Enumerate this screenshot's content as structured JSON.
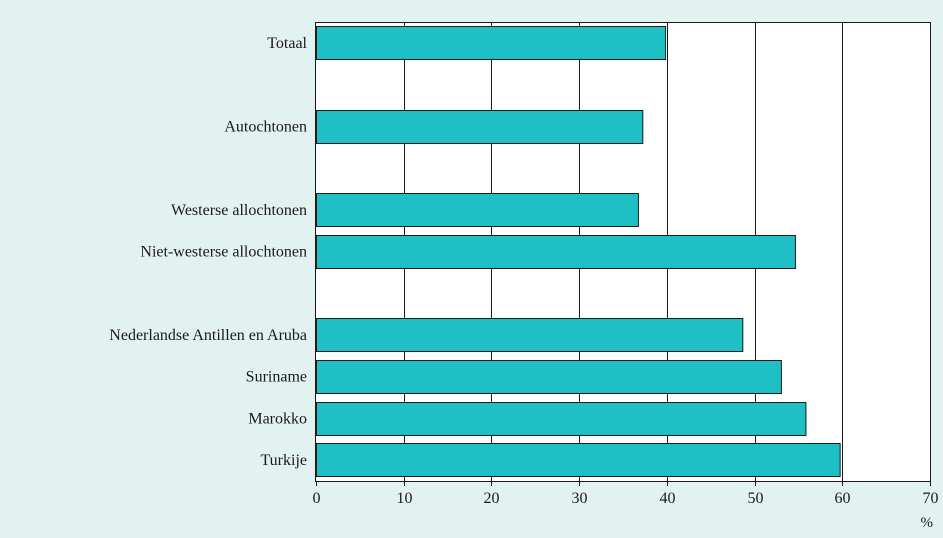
{
  "chart_data": {
    "type": "bar",
    "orientation": "horizontal",
    "categories": [
      "Totaal",
      "",
      "Autochtonen",
      "",
      "Westerse allochtonen",
      "Niet-westerse allochtonen",
      "",
      "Nederlandse Antillen en Aruba",
      "Suriname",
      "Marokko",
      "Turkije"
    ],
    "values": [
      39.8,
      null,
      37.2,
      null,
      36.7,
      54.6,
      null,
      48.6,
      53.0,
      55.8,
      59.7
    ],
    "bar_color": "#1fbfc6",
    "background_color": "#e2f2f1",
    "xlim": [
      0,
      70
    ],
    "xticks": [
      0,
      10,
      20,
      30,
      40,
      50,
      60,
      70
    ],
    "xunit": "%",
    "grid": true,
    "title": "",
    "xlabel": "",
    "ylabel": ""
  }
}
